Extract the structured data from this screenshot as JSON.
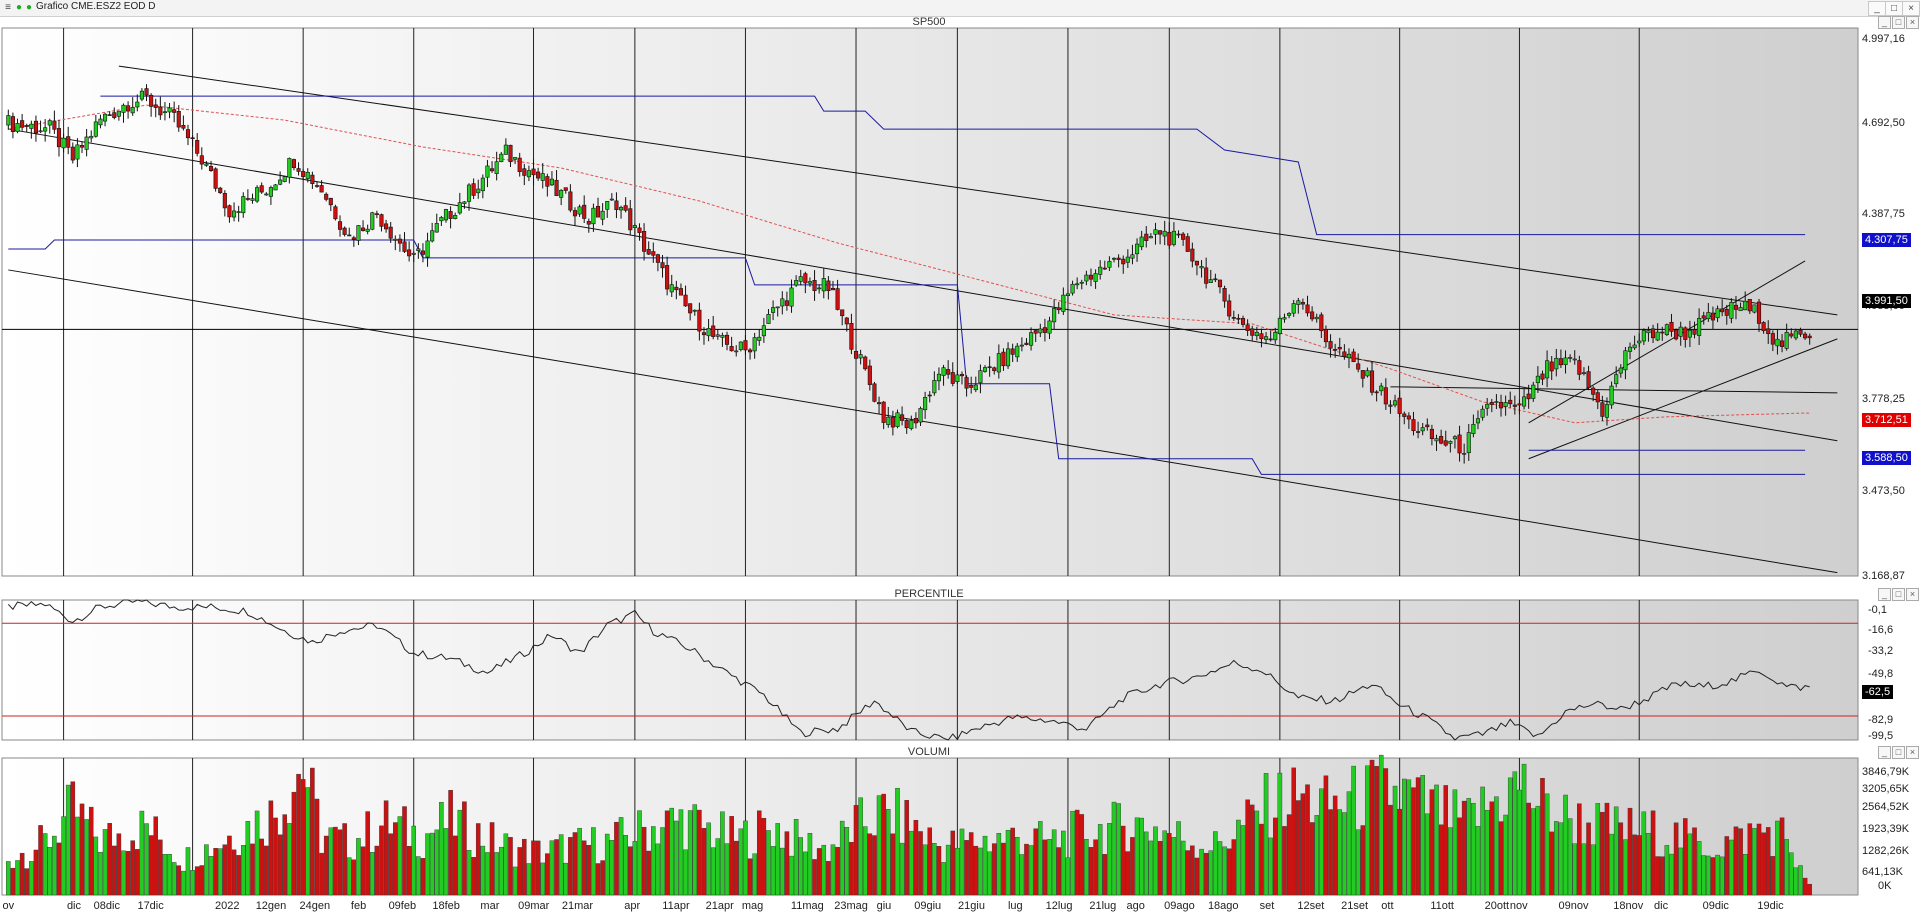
{
  "window": {
    "title": "Grafico CME.ESZ2 EOD D",
    "buttons": [
      "_",
      "□",
      "×"
    ]
  },
  "colors": {
    "up": "#22cc22",
    "down": "#cc1111",
    "ma": "#e05050",
    "level": "#1a1aa0",
    "channel": "#111111",
    "price_badge": "#000000",
    "ma_badge": "#e00000",
    "level_badge": "#1010cc",
    "ref_line": "#cc2222"
  },
  "chart_data": [
    {
      "type": "candlestick",
      "title": "SP500",
      "ylim": [
        3168.87,
        4997.16
      ],
      "y_ticks": [
        "4.997,16",
        "4.692,50",
        "4.387,75",
        "4.083,00",
        "3.778,25",
        "3.473,50",
        "3.168,87"
      ],
      "last_price": "3.991,50",
      "ma_value": "3.712,51",
      "support_high": "4.307,75",
      "support_low": "3.588,50",
      "x_labels": [
        "ov",
        "dic",
        "08dic",
        "17dic",
        "2022",
        "12gen",
        "24gen",
        "feb",
        "09feb",
        "18feb",
        "mar",
        "09mar",
        "21mar",
        "apr",
        "11apr",
        "21apr",
        "mag",
        "11mag",
        "23mag",
        "giu",
        "09giu",
        "21giu",
        "lug",
        "12lug",
        "21lug",
        "ago",
        "09ago",
        "18ago",
        "set",
        "12set",
        "21set",
        "ott",
        "11ott",
        "20ott",
        "nov",
        "09nov",
        "18nov",
        "dic",
        "09dic",
        "19dic"
      ],
      "anchors": [
        [
          0,
          4680
        ],
        [
          9,
          4660
        ],
        [
          14,
          4560
        ],
        [
          20,
          4690
        ],
        [
          26,
          4750
        ],
        [
          30,
          4760
        ],
        [
          36,
          4690
        ],
        [
          42,
          4560
        ],
        [
          48,
          4390
        ],
        [
          56,
          4460
        ],
        [
          62,
          4560
        ],
        [
          68,
          4460
        ],
        [
          74,
          4300
        ],
        [
          80,
          4380
        ],
        [
          88,
          4220
        ],
        [
          94,
          4350
        ],
        [
          102,
          4480
        ],
        [
          108,
          4580
        ],
        [
          114,
          4510
        ],
        [
          120,
          4440
        ],
        [
          126,
          4360
        ],
        [
          132,
          4420
        ],
        [
          138,
          4270
        ],
        [
          146,
          4080
        ],
        [
          154,
          3950
        ],
        [
          160,
          3920
        ],
        [
          166,
          4050
        ],
        [
          172,
          4150
        ],
        [
          178,
          4130
        ],
        [
          184,
          3920
        ],
        [
          190,
          3700
        ],
        [
          196,
          3670
        ],
        [
          202,
          3850
        ],
        [
          208,
          3800
        ],
        [
          214,
          3870
        ],
        [
          220,
          3940
        ],
        [
          226,
          4020
        ],
        [
          232,
          4150
        ],
        [
          238,
          4200
        ],
        [
          244,
          4250
        ],
        [
          250,
          4320
        ],
        [
          256,
          4260
        ],
        [
          262,
          4130
        ],
        [
          268,
          4000
        ],
        [
          274,
          3960
        ],
        [
          280,
          4110
        ],
        [
          286,
          3960
        ],
        [
          292,
          3870
        ],
        [
          298,
          3780
        ],
        [
          304,
          3680
        ],
        [
          310,
          3620
        ],
        [
          316,
          3600
        ],
        [
          322,
          3750
        ],
        [
          328,
          3720
        ],
        [
          334,
          3860
        ],
        [
          340,
          3880
        ],
        [
          346,
          3720
        ],
        [
          352,
          3940
        ],
        [
          358,
          3990
        ],
        [
          364,
          3980
        ],
        [
          370,
          4030
        ],
        [
          376,
          4070
        ],
        [
          380,
          4040
        ],
        [
          384,
          3940
        ],
        [
          390,
          3980
        ]
      ],
      "ma_points": [
        [
          0,
          4660
        ],
        [
          30,
          4740
        ],
        [
          60,
          4690
        ],
        [
          90,
          4600
        ],
        [
          120,
          4530
        ],
        [
          150,
          4420
        ],
        [
          180,
          4280
        ],
        [
          210,
          4160
        ],
        [
          240,
          4040
        ],
        [
          270,
          4010
        ],
        [
          300,
          3860
        ],
        [
          320,
          3750
        ],
        [
          340,
          3680
        ],
        [
          360,
          3700
        ],
        [
          390,
          3712.51
        ]
      ],
      "levels": [
        [
          [
            0,
            4260
          ],
          [
            8,
            4260
          ],
          [
            10,
            4290
          ],
          [
            88,
            4290
          ],
          [
            90,
            4230
          ],
          [
            160,
            4230
          ],
          [
            162,
            4140
          ],
          [
            206,
            4140
          ],
          [
            208,
            3810
          ],
          [
            226,
            3810
          ],
          [
            228,
            3560
          ],
          [
            270,
            3560
          ],
          [
            272,
            3508
          ],
          [
            390,
            3508
          ]
        ],
        [
          [
            20,
            4770
          ],
          [
            175,
            4770
          ],
          [
            177,
            4720
          ],
          [
            186,
            4720
          ],
          [
            190,
            4660
          ],
          [
            258,
            4660
          ],
          [
            264,
            4590
          ],
          [
            280,
            4550
          ],
          [
            284,
            4307.75
          ],
          [
            390,
            4307.75
          ]
        ],
        [
          [
            330,
            3588.5
          ],
          [
            390,
            3588.5
          ]
        ]
      ],
      "channels": [
        [
          [
            24,
            4870
          ],
          [
            397,
            4040
          ]
        ],
        [
          [
            0,
            4660
          ],
          [
            397,
            3620
          ]
        ],
        [
          [
            0,
            4190
          ],
          [
            397,
            3180
          ]
        ],
        [
          [
            330,
            3680
          ],
          [
            390,
            4220
          ]
        ],
        [
          [
            330,
            3560
          ],
          [
            397,
            3960
          ]
        ],
        [
          [
            300,
            3800
          ],
          [
            397,
            3780
          ]
        ]
      ]
    },
    {
      "type": "line",
      "title": "PERCENTILE",
      "ylim": [
        -100,
        0
      ],
      "y_ticks": [
        "-0,1",
        "-16,6",
        "-33,2",
        "-49,8",
        "-66,4",
        "-82,9",
        "-99,5"
      ],
      "last_value": "-62,5",
      "ref_lines": [
        -16.6,
        -82.9
      ],
      "values_anchor": [
        [
          0,
          -5
        ],
        [
          8,
          -3
        ],
        [
          14,
          -15
        ],
        [
          20,
          -5
        ],
        [
          28,
          -1
        ],
        [
          36,
          -5
        ],
        [
          44,
          -5
        ],
        [
          52,
          -8
        ],
        [
          60,
          -22
        ],
        [
          66,
          -30
        ],
        [
          72,
          -22
        ],
        [
          80,
          -18
        ],
        [
          88,
          -38
        ],
        [
          96,
          -42
        ],
        [
          104,
          -52
        ],
        [
          112,
          -38
        ],
        [
          118,
          -25
        ],
        [
          124,
          -38
        ],
        [
          130,
          -18
        ],
        [
          136,
          -10
        ],
        [
          140,
          -22
        ],
        [
          148,
          -35
        ],
        [
          156,
          -52
        ],
        [
          164,
          -68
        ],
        [
          172,
          -95
        ],
        [
          180,
          -92
        ],
        [
          188,
          -72
        ],
        [
          196,
          -94
        ],
        [
          204,
          -100
        ],
        [
          210,
          -92
        ],
        [
          218,
          -84
        ],
        [
          226,
          -86
        ],
        [
          234,
          -92
        ],
        [
          242,
          -70
        ],
        [
          250,
          -60
        ],
        [
          258,
          -55
        ],
        [
          266,
          -45
        ],
        [
          272,
          -50
        ],
        [
          280,
          -70
        ],
        [
          288,
          -72
        ],
        [
          296,
          -60
        ],
        [
          302,
          -75
        ],
        [
          308,
          -85
        ],
        [
          314,
          -99
        ],
        [
          320,
          -96
        ],
        [
          326,
          -88
        ],
        [
          332,
          -98
        ],
        [
          338,
          -80
        ],
        [
          344,
          -74
        ],
        [
          350,
          -78
        ],
        [
          356,
          -70
        ],
        [
          362,
          -60
        ],
        [
          368,
          -62
        ],
        [
          374,
          -58
        ],
        [
          380,
          -50
        ],
        [
          386,
          -62
        ],
        [
          390,
          -62.5
        ]
      ]
    },
    {
      "type": "bar",
      "title": "VOLUMI",
      "ylim": [
        0,
        4200
      ],
      "y_ticks": [
        "3846,79K",
        "3205,65K",
        "2564,52K",
        "1923,39K",
        "1282,26K",
        "641,13K",
        "0K"
      ],
      "volume_profile": [
        [
          0,
          1100
        ],
        [
          8,
          1600
        ],
        [
          14,
          2600
        ],
        [
          20,
          1700
        ],
        [
          30,
          2100
        ],
        [
          38,
          1100
        ],
        [
          44,
          1500
        ],
        [
          52,
          2100
        ],
        [
          58,
          2500
        ],
        [
          64,
          4000
        ],
        [
          68,
          1800
        ],
        [
          74,
          1600
        ],
        [
          82,
          2200
        ],
        [
          90,
          1800
        ],
        [
          96,
          2300
        ],
        [
          104,
          1700
        ],
        [
          110,
          1400
        ],
        [
          116,
          1300
        ],
        [
          122,
          1500
        ],
        [
          130,
          1600
        ],
        [
          138,
          2000
        ],
        [
          146,
          2300
        ],
        [
          152,
          2000
        ],
        [
          158,
          1700
        ],
        [
          166,
          2100
        ],
        [
          172,
          1600
        ],
        [
          178,
          1400
        ],
        [
          184,
          2100
        ],
        [
          190,
          2500
        ],
        [
          196,
          2200
        ],
        [
          202,
          1500
        ],
        [
          208,
          1600
        ],
        [
          214,
          1700
        ],
        [
          220,
          1800
        ],
        [
          226,
          1600
        ],
        [
          232,
          1900
        ],
        [
          238,
          2000
        ],
        [
          244,
          2200
        ],
        [
          250,
          2000
        ],
        [
          256,
          1700
        ],
        [
          262,
          1500
        ],
        [
          268,
          2100
        ],
        [
          274,
          2800
        ],
        [
          280,
          3000
        ],
        [
          286,
          2700
        ],
        [
          292,
          2900
        ],
        [
          298,
          3200
        ],
        [
          304,
          3000
        ],
        [
          310,
          2600
        ],
        [
          316,
          2200
        ],
        [
          322,
          2800
        ],
        [
          328,
          3400
        ],
        [
          334,
          2600
        ],
        [
          340,
          2300
        ],
        [
          346,
          2100
        ],
        [
          352,
          2000
        ],
        [
          358,
          1900
        ],
        [
          364,
          1700
        ],
        [
          370,
          1500
        ],
        [
          376,
          1700
        ],
        [
          380,
          2000
        ],
        [
          386,
          1800
        ],
        [
          390,
          400
        ]
      ]
    }
  ]
}
